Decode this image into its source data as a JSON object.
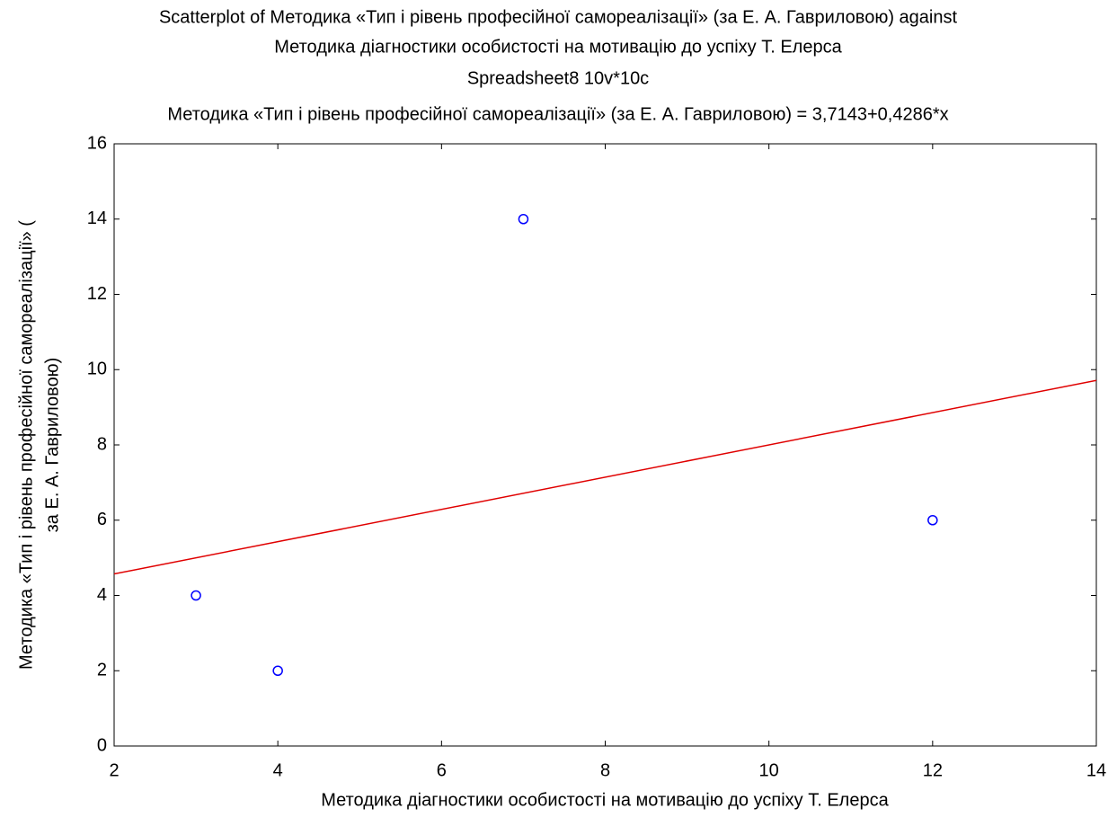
{
  "chart_data": {
    "type": "scatter",
    "title": [
      "Scatterplot of Методика «Тип і рівень професійної самореалізації» (за Е. А. Гавриловою) against",
      "Методика діагностики особистості на мотивацію до успіху Т. Елерса",
      "Spreadsheet8 10v*10c"
    ],
    "subtitle": "Методика «Тип і рівень професійної самореалізації» (за Е. А. Гавриловою) = 3,7143+0,4286*x",
    "x_label": "Методика діагностики особистості на мотивацію до успіху Т. Елерса",
    "y_label": [
      "Методика «Тип і рівень професійної самореалізації» (",
      "за Е. А. Гавриловою)"
    ],
    "x": [
      3,
      4,
      7,
      12
    ],
    "series": [
      {
        "color": "#0000ff",
        "values": [
          4,
          2,
          14,
          6
        ]
      }
    ],
    "fit_line": {
      "intercept": 3.7143,
      "slope": 0.4286,
      "color": "#e00000"
    },
    "xlim": [
      2,
      14
    ],
    "xticks": [
      2,
      4,
      6,
      8,
      10,
      12,
      14
    ],
    "ylim": [
      0,
      16
    ],
    "yticks": [
      0,
      2,
      4,
      6,
      8,
      10,
      12,
      14,
      16
    ],
    "grid": false
  }
}
